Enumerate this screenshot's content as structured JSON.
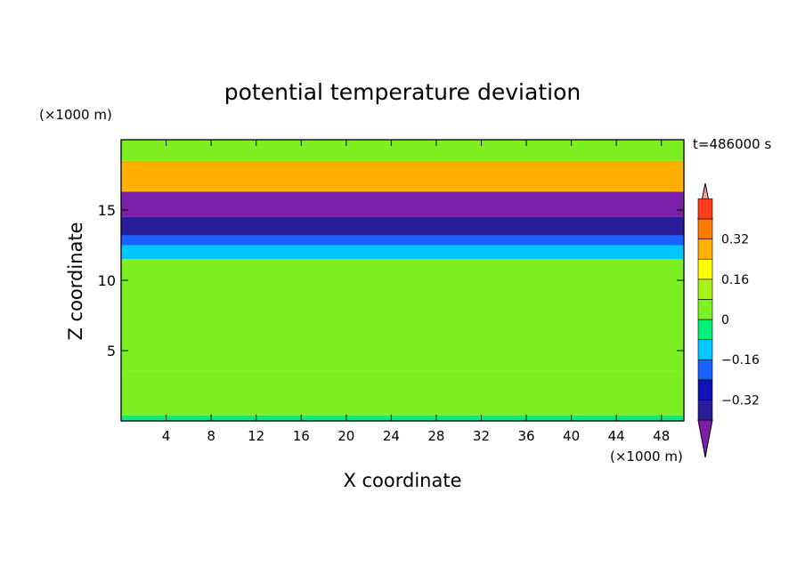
{
  "chart_data": {
    "type": "heatmap",
    "title": "potential temperature deviation",
    "xlabel": "X coordinate",
    "ylabel": "Z coordinate",
    "x_unit_label": "(×1000 m)",
    "y_unit_label": "(×1000 m)",
    "time_label": "t=486000 s",
    "xlim": [
      0,
      50
    ],
    "ylim": [
      0,
      20
    ],
    "x_ticks": [
      4,
      8,
      12,
      16,
      20,
      24,
      28,
      32,
      36,
      40,
      44,
      48
    ],
    "y_ticks": [
      5,
      10,
      15
    ],
    "colorbar": {
      "levels": [
        -0.48,
        -0.4,
        -0.32,
        -0.24,
        -0.16,
        -0.08,
        0,
        0.08,
        0.16,
        0.24,
        0.32,
        0.4,
        0.48
      ],
      "tick_values": [
        0.32,
        0.16,
        0,
        -0.16,
        -0.32
      ],
      "tick_labels": [
        "0.32",
        "0.16",
        "0",
        "−0.16",
        "−0.32"
      ],
      "colors": [
        "#7a1fa8",
        "#2a1d9a",
        "#1010b8",
        "#1a62ff",
        "#00c8ff",
        "#00f07a",
        "#7cf020",
        "#a8f21a",
        "#ffff00",
        "#ffb000",
        "#ff7a00",
        "#ff3c1e",
        "#f4a3a3"
      ]
    },
    "bands": [
      {
        "z": [
          0,
          0.4
        ],
        "value": -0.05
      },
      {
        "z": [
          0.4,
          3.5
        ],
        "value": 0.0
      },
      {
        "z": [
          3.5,
          10
        ],
        "value": 0.04
      },
      {
        "z": [
          10,
          11.5
        ],
        "value": 0.06
      },
      {
        "z": [
          11.5,
          12.5
        ],
        "value": -0.12
      },
      {
        "z": [
          12.5,
          13.2
        ],
        "value": -0.2
      },
      {
        "z": [
          13.2,
          14.5
        ],
        "value": -0.36
      },
      {
        "z": [
          14.5,
          16.3
        ],
        "value": -0.44
      },
      {
        "z": [
          16.3,
          18.5
        ],
        "value": 0.3
      },
      {
        "z": [
          18.5,
          20
        ],
        "value": 0.04
      }
    ]
  }
}
